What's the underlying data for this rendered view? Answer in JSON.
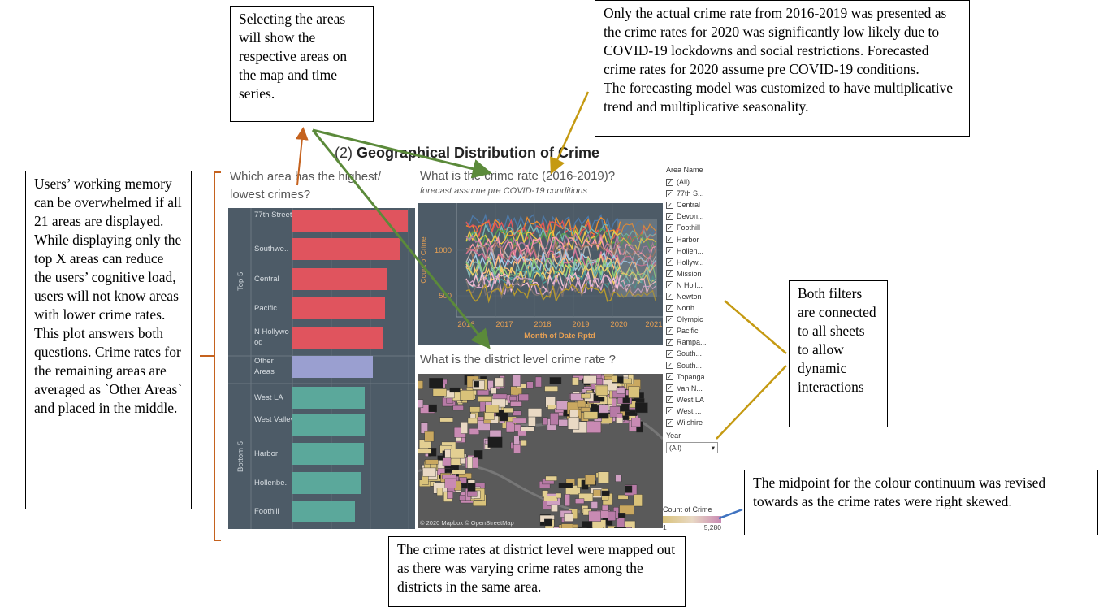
{
  "callouts": {
    "selecting": "Selecting the areas will show the respective areas on the map and time series.",
    "actual_rate": "Only the actual crime rate from 2016-2019 was presented as the crime rates for 2020 was significantly low likely due to COVID-19 lockdowns and social restrictions. Forecasted crime rates for 2020 assume pre COVID-19 conditions.",
    "forecast_model": "The forecasting model was customized to have multiplicative trend and multiplicative seasonality.",
    "working_memory": "Users’ working memory can be overwhelmed if all 21 areas are displayed. While displaying only the top X areas can reduce the users’ cognitive load, users will not know areas with lower crime rates. This plot answers both questions. Crime rates for the remaining areas are averaged as `Other Areas` and placed in the middle.",
    "filters": "Both filters are connected to all sheets to allow dynamic interactions",
    "midpoint": "The midpoint for the colour continuum was revised towards as the crime rates were right skewed.",
    "district": "The crime rates at district level were mapped out as there was varying crime rates among the districts in the same area."
  },
  "dashboard": {
    "title_num": "(2)",
    "title": "Geographical Distribution of Crime",
    "q_bar": "Which area has the highest/ lowest crimes?",
    "q_line": "What is the crime rate  (2016-2019)?",
    "q_line_sub": "forecast assume pre COVID-19 conditions",
    "q_map": "What is the district level crime rate ?",
    "map_credit": "© 2020 Mapbox © OpenStreetMap",
    "bar_groups": {
      "top": "Top 5",
      "bottom": "Bottom 5"
    },
    "bar_categories": [
      "77th Street",
      "Southwe..",
      "Central",
      "Pacific",
      "N Hollywo od",
      "Other Areas",
      "West LA",
      "West Valley",
      "Harbor",
      "Hollenbe..",
      "Foothill"
    ],
    "line_axis": {
      "ylabel": "Count of Crime",
      "xlabel": "Month of Date Rptd",
      "yticks": [
        "1000",
        "500"
      ],
      "xticks": [
        "2016",
        "2017",
        "2018",
        "2019",
        "2020",
        "2021"
      ]
    }
  },
  "chart_data": {
    "type": "bar",
    "categories": [
      "77th Street",
      "Southwe..",
      "Central",
      "Pacific",
      "N Hollywo od",
      "Other Areas",
      "West LA",
      "West Valley",
      "Harbor",
      "Hollenbe..",
      "Foothill"
    ],
    "values": [
      100,
      94,
      82,
      80,
      79,
      70,
      63,
      63,
      62,
      59,
      54
    ],
    "colors": [
      "#e0545e",
      "#e0545e",
      "#e0545e",
      "#e0545e",
      "#e0545e",
      "#9a9fd0",
      "#5ba89b",
      "#5ba89b",
      "#5ba89b",
      "#5ba89b",
      "#5ba89b"
    ]
  },
  "filters": {
    "area_title": "Area Name",
    "areas": [
      "(All)",
      "77th S...",
      "Central",
      "Devon...",
      "Foothill",
      "Harbor",
      "Hollen...",
      "Hollyw...",
      "Mission",
      "N Holl...",
      "Newton",
      "North...",
      "Olympic",
      "Pacific",
      "Rampa...",
      "South...",
      "South...",
      "Topanga",
      "Van N...",
      "West LA",
      "West ...",
      "Wilshire"
    ],
    "check": "✓",
    "year_title": "Year",
    "year_value": "(All)",
    "color_title": "Count of Crime",
    "color_min": "1",
    "color_max": "5,280"
  }
}
